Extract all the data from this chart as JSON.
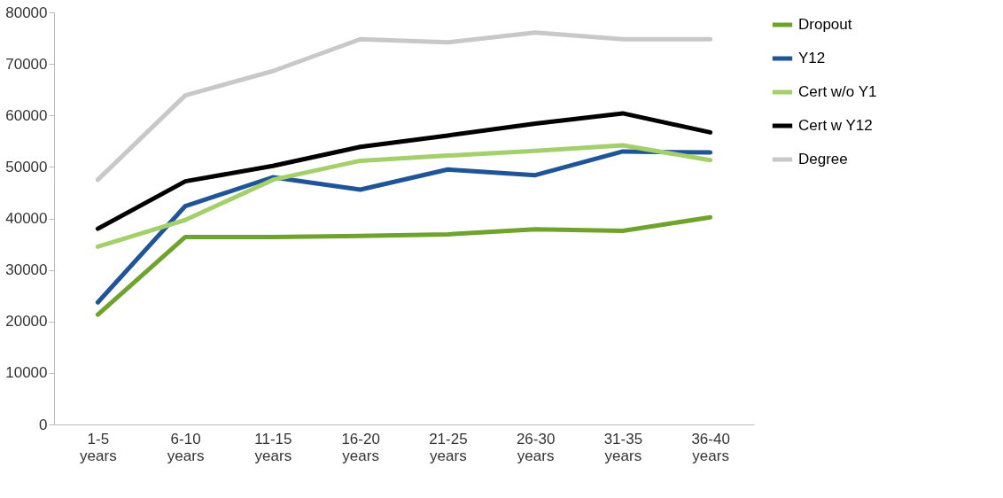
{
  "chart_data": {
    "type": "line",
    "categories": [
      "1-5 years",
      "6-10 years",
      "11-15 years",
      "16-20 years",
      "21-25 years",
      "26-30 years",
      "31-35 years",
      "36-40 years"
    ],
    "series": [
      {
        "name": "Dropout",
        "color": "#70a22e",
        "values": [
          21300,
          36400,
          36400,
          36600,
          36900,
          37900,
          37600,
          40200
        ]
      },
      {
        "name": "Y12",
        "color": "#1f5597",
        "values": [
          23700,
          42400,
          48000,
          45600,
          49500,
          48400,
          53000,
          52800
        ]
      },
      {
        "name": "Cert w/o Y1",
        "color": "#a3d06b",
        "values": [
          34500,
          39700,
          47500,
          51200,
          52200,
          53100,
          54200,
          51300
        ]
      },
      {
        "name": "Cert w Y12",
        "color": "#000000",
        "values": [
          38000,
          47200,
          50200,
          53900,
          56100,
          58400,
          60400,
          56700
        ]
      },
      {
        "name": "Degree",
        "color": "#c8c8c8",
        "values": [
          47500,
          63900,
          68600,
          74800,
          74200,
          76100,
          74800,
          74800
        ]
      }
    ],
    "ylim": [
      0,
      80000
    ],
    "yticks": [
      0,
      10000,
      20000,
      30000,
      40000,
      50000,
      60000,
      70000,
      80000
    ],
    "grid": false,
    "legend": "right",
    "marker": "none",
    "line_style": "solid"
  }
}
